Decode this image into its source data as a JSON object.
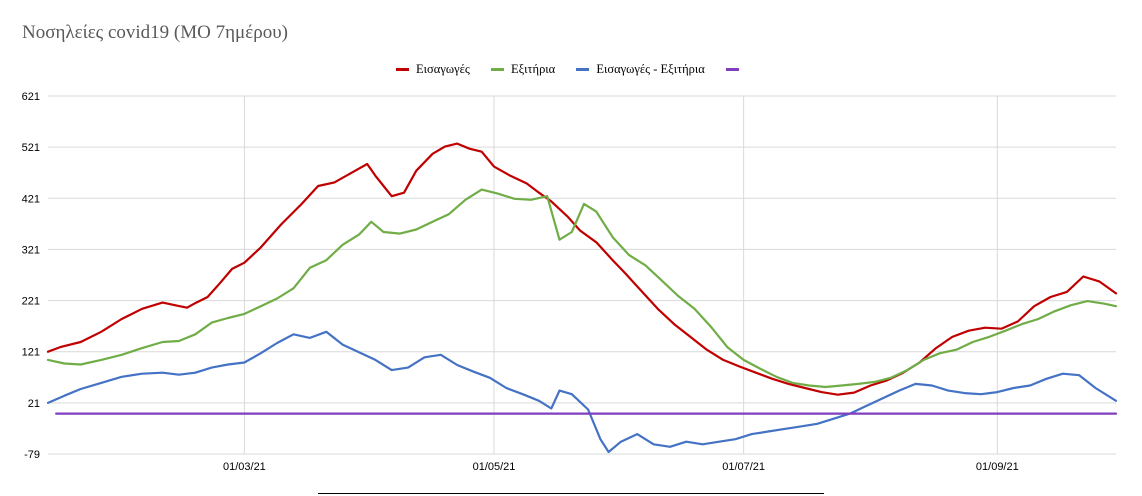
{
  "chart_data": {
    "type": "line",
    "title": "Νοσηλείες covid19 (ΜΟ 7ημέρου)",
    "xlabel": "",
    "ylabel": "",
    "ylim": [
      -79,
      621
    ],
    "yticks": [
      621,
      521,
      421,
      321,
      221,
      121,
      21,
      -79
    ],
    "x_start": "2021-01-12",
    "x_end": "2021-09-30",
    "x_ticks": [
      {
        "date": "2021-03-01",
        "label": "01/03/21"
      },
      {
        "date": "2021-05-01",
        "label": "01/05/21"
      },
      {
        "date": "2021-07-01",
        "label": "01/07/21"
      },
      {
        "date": "2021-09-01",
        "label": "01/09/21"
      }
    ],
    "grid": true,
    "legend_position": "top",
    "series": [
      {
        "name": "Εισαγωγές",
        "color": "#c00000",
        "points": [
          [
            "2021-01-12",
            121
          ],
          [
            "2021-01-15",
            130
          ],
          [
            "2021-01-20",
            140
          ],
          [
            "2021-01-25",
            160
          ],
          [
            "2021-01-30",
            185
          ],
          [
            "2021-02-04",
            205
          ],
          [
            "2021-02-09",
            217
          ],
          [
            "2021-02-12",
            212
          ],
          [
            "2021-02-15",
            207
          ],
          [
            "2021-02-17",
            216
          ],
          [
            "2021-02-20",
            228
          ],
          [
            "2021-02-23",
            255
          ],
          [
            "2021-02-26",
            283
          ],
          [
            "2021-03-01",
            295
          ],
          [
            "2021-03-05",
            325
          ],
          [
            "2021-03-10",
            370
          ],
          [
            "2021-03-15",
            410
          ],
          [
            "2021-03-19",
            445
          ],
          [
            "2021-03-23",
            452
          ],
          [
            "2021-03-27",
            470
          ],
          [
            "2021-03-31",
            488
          ],
          [
            "2021-04-02",
            465
          ],
          [
            "2021-04-06",
            425
          ],
          [
            "2021-04-09",
            432
          ],
          [
            "2021-04-12",
            475
          ],
          [
            "2021-04-16",
            508
          ],
          [
            "2021-04-19",
            522
          ],
          [
            "2021-04-22",
            528
          ],
          [
            "2021-04-25",
            518
          ],
          [
            "2021-04-28",
            512
          ],
          [
            "2021-05-01",
            483
          ],
          [
            "2021-05-05",
            465
          ],
          [
            "2021-05-09",
            450
          ],
          [
            "2021-05-12",
            432
          ],
          [
            "2021-05-15",
            415
          ],
          [
            "2021-05-19",
            385
          ],
          [
            "2021-05-22",
            358
          ],
          [
            "2021-05-26",
            335
          ],
          [
            "2021-05-30",
            300
          ],
          [
            "2021-06-02",
            275
          ],
          [
            "2021-06-06",
            240
          ],
          [
            "2021-06-10",
            205
          ],
          [
            "2021-06-14",
            175
          ],
          [
            "2021-06-18",
            150
          ],
          [
            "2021-06-22",
            125
          ],
          [
            "2021-06-26",
            105
          ],
          [
            "2021-06-30",
            92
          ],
          [
            "2021-07-04",
            80
          ],
          [
            "2021-07-08",
            68
          ],
          [
            "2021-07-12",
            58
          ],
          [
            "2021-07-16",
            50
          ],
          [
            "2021-07-20",
            42
          ],
          [
            "2021-07-24",
            37
          ],
          [
            "2021-07-28",
            41
          ],
          [
            "2021-08-01",
            55
          ],
          [
            "2021-08-05",
            65
          ],
          [
            "2021-08-09",
            80
          ],
          [
            "2021-08-13",
            100
          ],
          [
            "2021-08-17",
            128
          ],
          [
            "2021-08-21",
            150
          ],
          [
            "2021-08-25",
            162
          ],
          [
            "2021-08-29",
            168
          ],
          [
            "2021-09-02",
            166
          ],
          [
            "2021-09-06",
            180
          ],
          [
            "2021-09-10",
            210
          ],
          [
            "2021-09-14",
            228
          ],
          [
            "2021-09-18",
            238
          ],
          [
            "2021-09-22",
            268
          ],
          [
            "2021-09-26",
            258
          ],
          [
            "2021-09-30",
            235
          ]
        ]
      },
      {
        "name": "Εξιτήρια",
        "color": "#70ad47",
        "points": [
          [
            "2021-01-12",
            105
          ],
          [
            "2021-01-16",
            98
          ],
          [
            "2021-01-20",
            96
          ],
          [
            "2021-01-25",
            105
          ],
          [
            "2021-01-30",
            115
          ],
          [
            "2021-02-04",
            128
          ],
          [
            "2021-02-09",
            140
          ],
          [
            "2021-02-13",
            142
          ],
          [
            "2021-02-17",
            155
          ],
          [
            "2021-02-21",
            178
          ],
          [
            "2021-02-25",
            187
          ],
          [
            "2021-03-01",
            195
          ],
          [
            "2021-03-05",
            210
          ],
          [
            "2021-03-09",
            225
          ],
          [
            "2021-03-13",
            245
          ],
          [
            "2021-03-17",
            285
          ],
          [
            "2021-03-21",
            300
          ],
          [
            "2021-03-25",
            330
          ],
          [
            "2021-03-29",
            350
          ],
          [
            "2021-04-01",
            375
          ],
          [
            "2021-04-04",
            355
          ],
          [
            "2021-04-08",
            352
          ],
          [
            "2021-04-12",
            360
          ],
          [
            "2021-04-16",
            375
          ],
          [
            "2021-04-20",
            390
          ],
          [
            "2021-04-24",
            418
          ],
          [
            "2021-04-28",
            438
          ],
          [
            "2021-05-02",
            430
          ],
          [
            "2021-05-06",
            420
          ],
          [
            "2021-05-10",
            418
          ],
          [
            "2021-05-14",
            425
          ],
          [
            "2021-05-17",
            340
          ],
          [
            "2021-05-20",
            355
          ],
          [
            "2021-05-23",
            410
          ],
          [
            "2021-05-26",
            395
          ],
          [
            "2021-05-30",
            345
          ],
          [
            "2021-06-03",
            310
          ],
          [
            "2021-06-07",
            290
          ],
          [
            "2021-06-11",
            260
          ],
          [
            "2021-06-15",
            230
          ],
          [
            "2021-06-19",
            205
          ],
          [
            "2021-06-23",
            170
          ],
          [
            "2021-06-27",
            130
          ],
          [
            "2021-07-01",
            105
          ],
          [
            "2021-07-05",
            88
          ],
          [
            "2021-07-09",
            72
          ],
          [
            "2021-07-13",
            60
          ],
          [
            "2021-07-17",
            55
          ],
          [
            "2021-07-21",
            52
          ],
          [
            "2021-07-25",
            55
          ],
          [
            "2021-07-29",
            58
          ],
          [
            "2021-08-02",
            62
          ],
          [
            "2021-08-06",
            70
          ],
          [
            "2021-08-10",
            85
          ],
          [
            "2021-08-14",
            105
          ],
          [
            "2021-08-18",
            118
          ],
          [
            "2021-08-22",
            125
          ],
          [
            "2021-08-26",
            140
          ],
          [
            "2021-08-30",
            150
          ],
          [
            "2021-09-03",
            162
          ],
          [
            "2021-09-07",
            175
          ],
          [
            "2021-09-11",
            185
          ],
          [
            "2021-09-15",
            200
          ],
          [
            "2021-09-19",
            212
          ],
          [
            "2021-09-23",
            220
          ],
          [
            "2021-09-27",
            215
          ],
          [
            "2021-09-30",
            210
          ]
        ]
      },
      {
        "name": "Εισαγωγές - Εξιτήρια",
        "color": "#4472c4",
        "points": [
          [
            "2021-01-12",
            21
          ],
          [
            "2021-01-16",
            35
          ],
          [
            "2021-01-20",
            48
          ],
          [
            "2021-01-25",
            60
          ],
          [
            "2021-01-30",
            72
          ],
          [
            "2021-02-04",
            78
          ],
          [
            "2021-02-09",
            80
          ],
          [
            "2021-02-13",
            76
          ],
          [
            "2021-02-17",
            80
          ],
          [
            "2021-02-21",
            90
          ],
          [
            "2021-02-25",
            96
          ],
          [
            "2021-03-01",
            100
          ],
          [
            "2021-03-05",
            118
          ],
          [
            "2021-03-09",
            138
          ],
          [
            "2021-03-13",
            155
          ],
          [
            "2021-03-17",
            148
          ],
          [
            "2021-03-21",
            160
          ],
          [
            "2021-03-25",
            135
          ],
          [
            "2021-03-29",
            120
          ],
          [
            "2021-04-02",
            105
          ],
          [
            "2021-04-06",
            85
          ],
          [
            "2021-04-10",
            90
          ],
          [
            "2021-04-14",
            110
          ],
          [
            "2021-04-18",
            115
          ],
          [
            "2021-04-22",
            95
          ],
          [
            "2021-04-26",
            82
          ],
          [
            "2021-04-30",
            70
          ],
          [
            "2021-05-04",
            50
          ],
          [
            "2021-05-08",
            38
          ],
          [
            "2021-05-12",
            25
          ],
          [
            "2021-05-15",
            10
          ],
          [
            "2021-05-17",
            45
          ],
          [
            "2021-05-20",
            38
          ],
          [
            "2021-05-24",
            8
          ],
          [
            "2021-05-27",
            -50
          ],
          [
            "2021-05-29",
            -75
          ],
          [
            "2021-06-01",
            -55
          ],
          [
            "2021-06-05",
            -40
          ],
          [
            "2021-06-09",
            -60
          ],
          [
            "2021-06-13",
            -65
          ],
          [
            "2021-06-17",
            -55
          ],
          [
            "2021-06-21",
            -60
          ],
          [
            "2021-06-25",
            -55
          ],
          [
            "2021-06-29",
            -50
          ],
          [
            "2021-07-03",
            -40
          ],
          [
            "2021-07-07",
            -35
          ],
          [
            "2021-07-11",
            -30
          ],
          [
            "2021-07-15",
            -25
          ],
          [
            "2021-07-19",
            -20
          ],
          [
            "2021-07-23",
            -10
          ],
          [
            "2021-07-27",
            0
          ],
          [
            "2021-07-31",
            15
          ],
          [
            "2021-08-04",
            30
          ],
          [
            "2021-08-08",
            45
          ],
          [
            "2021-08-12",
            58
          ],
          [
            "2021-08-16",
            55
          ],
          [
            "2021-08-20",
            45
          ],
          [
            "2021-08-24",
            40
          ],
          [
            "2021-08-28",
            38
          ],
          [
            "2021-09-01",
            42
          ],
          [
            "2021-09-05",
            50
          ],
          [
            "2021-09-09",
            55
          ],
          [
            "2021-09-13",
            68
          ],
          [
            "2021-09-17",
            78
          ],
          [
            "2021-09-21",
            75
          ],
          [
            "2021-09-25",
            50
          ],
          [
            "2021-09-30",
            25
          ]
        ]
      },
      {
        "name": "",
        "color": "#7f3fbf",
        "points": [
          [
            "2021-01-14",
            0
          ],
          [
            "2021-09-30",
            0
          ]
        ]
      }
    ]
  }
}
